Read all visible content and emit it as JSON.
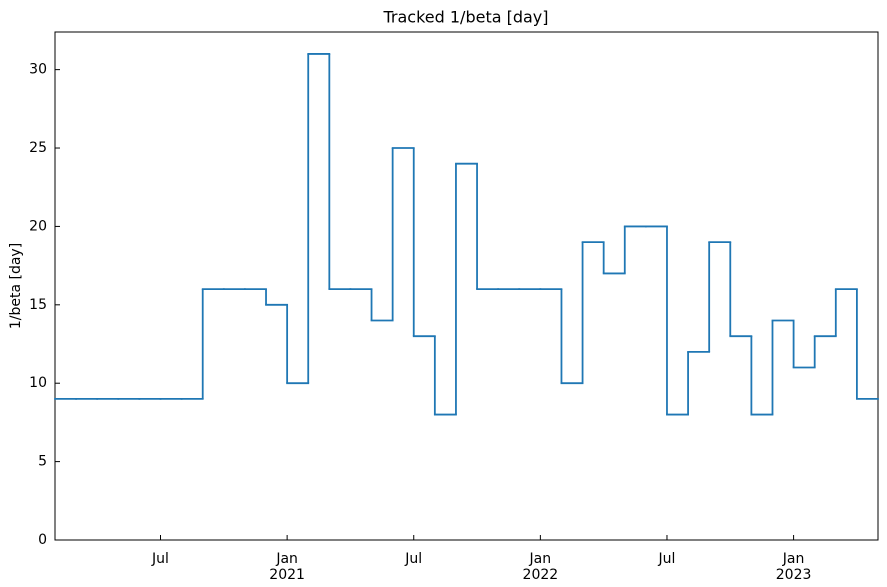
{
  "chart_data": {
    "type": "step",
    "title": "Tracked 1/beta [day]",
    "y_label": "1/beta [day]",
    "x": [
      "2020-02",
      "2020-03",
      "2020-04",
      "2020-05",
      "2020-06",
      "2020-07",
      "2020-08",
      "2020-09",
      "2020-10",
      "2020-11",
      "2020-12",
      "2021-01",
      "2021-02",
      "2021-03",
      "2021-04",
      "2021-05",
      "2021-06",
      "2021-07",
      "2021-08",
      "2021-09",
      "2021-10",
      "2021-11",
      "2021-12",
      "2022-01",
      "2022-02",
      "2022-03",
      "2022-04",
      "2022-05",
      "2022-06",
      "2022-07",
      "2022-08",
      "2022-09",
      "2022-10",
      "2022-11",
      "2022-12",
      "2023-01",
      "2023-02",
      "2023-03",
      "2023-04"
    ],
    "series": [
      {
        "name": "1/beta",
        "color": "#1f77b4",
        "values": [
          9,
          9,
          9,
          9,
          9,
          9,
          9,
          16,
          16,
          16,
          15,
          10,
          31,
          16,
          16,
          14,
          25,
          13,
          8,
          24,
          16,
          16,
          16,
          16,
          10,
          19,
          17,
          20,
          20,
          8,
          12,
          19,
          13,
          8,
          14,
          11,
          13,
          16,
          9
        ]
      }
    ],
    "xlim": [
      "2020-02",
      "2023-05"
    ],
    "xticks": [
      {
        "value": "2020-07",
        "label": [
          "Jul"
        ]
      },
      {
        "value": "2021-01",
        "label": [
          "Jan",
          "2021"
        ]
      },
      {
        "value": "2021-07",
        "label": [
          "Jul"
        ]
      },
      {
        "value": "2022-01",
        "label": [
          "Jan",
          "2022"
        ]
      },
      {
        "value": "2022-07",
        "label": [
          "Jul"
        ]
      },
      {
        "value": "2023-01",
        "label": [
          "Jan",
          "2023"
        ]
      }
    ],
    "ylim": [
      0,
      32.4
    ],
    "yticks": [
      0,
      5,
      10,
      15,
      20,
      25,
      30
    ],
    "grid": false
  }
}
